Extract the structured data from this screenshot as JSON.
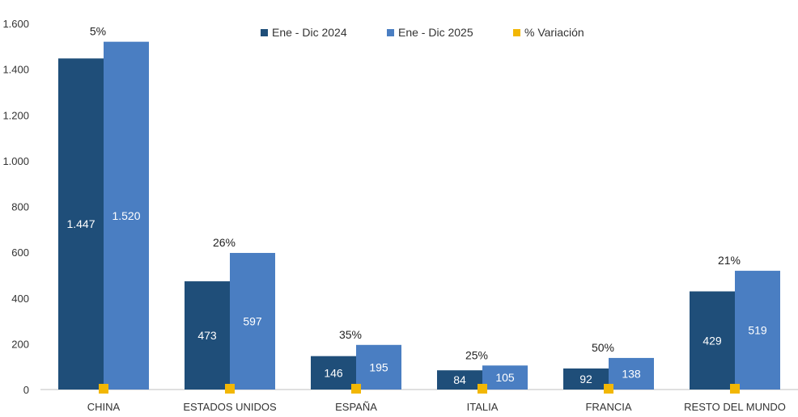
{
  "chart_data": {
    "type": "bar",
    "title": "",
    "xlabel": "",
    "ylabel": "",
    "ylim": [
      0,
      1600
    ],
    "yticks": [
      0,
      200,
      400,
      600,
      800,
      1000,
      1200,
      1400,
      1600
    ],
    "ytick_labels": [
      "0",
      "200",
      "400",
      "600",
      "800",
      "1.000",
      "1.200",
      "1.400",
      "1.600"
    ],
    "categories": [
      "CHINA",
      "ESTADOS UNIDOS",
      "ESPAÑA",
      "ITALIA",
      "FRANCIA",
      "RESTO DEL MUNDO"
    ],
    "series": [
      {
        "name": "Ene - Dic 2024",
        "color": "#1F4E79",
        "values": [
          1447,
          473,
          146,
          84,
          92,
          429
        ],
        "labels": [
          "1.447",
          "473",
          "146",
          "84",
          "92",
          "429"
        ]
      },
      {
        "name": "Ene - Dic 2025",
        "color": "#4A7EC2",
        "values": [
          1520,
          597,
          195,
          105,
          138,
          519
        ],
        "labels": [
          "1.520",
          "597",
          "195",
          "105",
          "138",
          "519"
        ]
      },
      {
        "name": "% Variación",
        "color": "#F2B705",
        "values": [
          5,
          26,
          35,
          25,
          50,
          21
        ],
        "labels": [
          "5%",
          "26%",
          "35%",
          "25%",
          "50%",
          "21%"
        ]
      }
    ],
    "legend_position": "top-center",
    "grid": false
  }
}
